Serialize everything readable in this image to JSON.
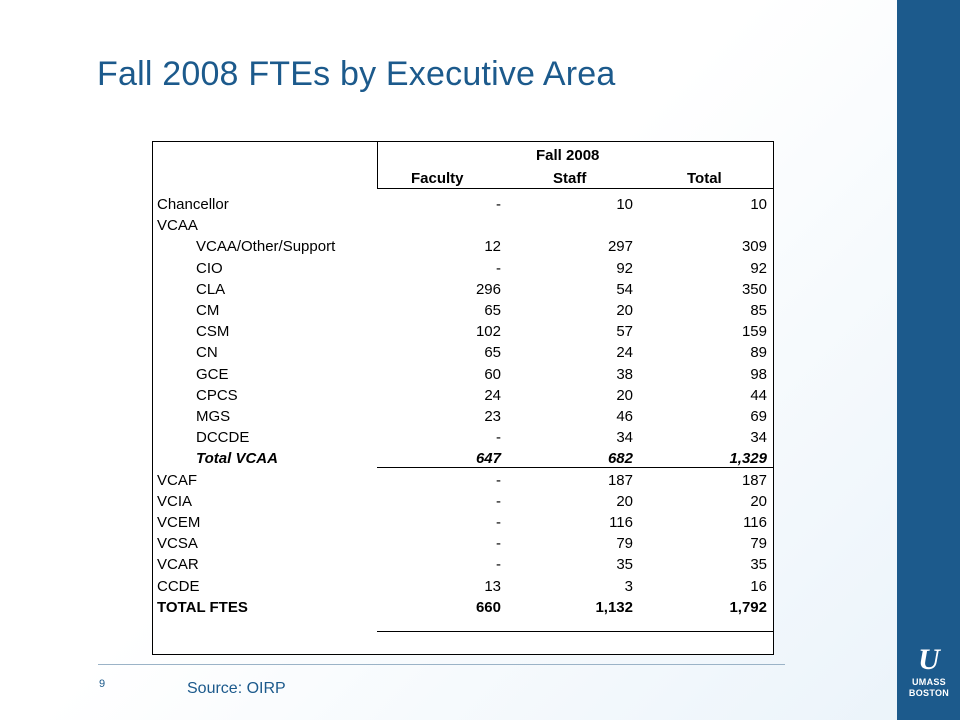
{
  "title": "Fall 2008 FTEs by Executive Area",
  "table": {
    "group_header": "Fall 2008",
    "columns": [
      "Faculty",
      "Staff",
      "Total"
    ],
    "rows": [
      {
        "label": "Chancellor",
        "faculty": "-",
        "staff": "10",
        "total": "10",
        "indent": false,
        "style": "normal"
      },
      {
        "label": "VCAA",
        "faculty": "",
        "staff": "",
        "total": "",
        "indent": false,
        "style": "normal"
      },
      {
        "label": "VCAA/Other/Support",
        "faculty": "12",
        "staff": "297",
        "total": "309",
        "indent": true,
        "style": "normal"
      },
      {
        "label": "CIO",
        "faculty": "-",
        "staff": "92",
        "total": "92",
        "indent": true,
        "style": "normal"
      },
      {
        "label": "CLA",
        "faculty": "296",
        "staff": "54",
        "total": "350",
        "indent": true,
        "style": "normal"
      },
      {
        "label": "CM",
        "faculty": "65",
        "staff": "20",
        "total": "85",
        "indent": true,
        "style": "normal"
      },
      {
        "label": "CSM",
        "faculty": "102",
        "staff": "57",
        "total": "159",
        "indent": true,
        "style": "normal"
      },
      {
        "label": "CN",
        "faculty": "65",
        "staff": "24",
        "total": "89",
        "indent": true,
        "style": "normal"
      },
      {
        "label": "GCE",
        "faculty": "60",
        "staff": "38",
        "total": "98",
        "indent": true,
        "style": "normal"
      },
      {
        "label": "CPCS",
        "faculty": "24",
        "staff": "20",
        "total": "44",
        "indent": true,
        "style": "normal"
      },
      {
        "label": "MGS",
        "faculty": "23",
        "staff": "46",
        "total": "69",
        "indent": true,
        "style": "normal"
      },
      {
        "label": "DCCDE",
        "faculty": "-",
        "staff": "34",
        "total": "34",
        "indent": true,
        "style": "normal"
      },
      {
        "label": "Total VCAA",
        "faculty": "647",
        "staff": "682",
        "total": "1,329",
        "indent": true,
        "style": "italic"
      },
      {
        "label": "VCAF",
        "faculty": "-",
        "staff": "187",
        "total": "187",
        "indent": false,
        "style": "normal"
      },
      {
        "label": "VCIA",
        "faculty": "-",
        "staff": "20",
        "total": "20",
        "indent": false,
        "style": "normal"
      },
      {
        "label": "VCEM",
        "faculty": "-",
        "staff": "116",
        "total": "116",
        "indent": false,
        "style": "normal"
      },
      {
        "label": "VCSA",
        "faculty": "-",
        "staff": "79",
        "total": "79",
        "indent": false,
        "style": "normal"
      },
      {
        "label": "VCAR",
        "faculty": "-",
        "staff": "35",
        "total": "35",
        "indent": false,
        "style": "normal"
      },
      {
        "label": "CCDE",
        "faculty": "13",
        "staff": "3",
        "total": "16",
        "indent": false,
        "style": "normal"
      },
      {
        "label": "TOTAL FTES",
        "faculty": "660",
        "staff": "1,132",
        "total": "1,792",
        "indent": false,
        "style": "bold"
      }
    ]
  },
  "footer": {
    "page_number": "9",
    "source": "Source:  OIRP"
  },
  "logo": {
    "line1": "UMASS",
    "line2": "BOSTON"
  },
  "colors": {
    "accent": "#1c5a8c",
    "sidebar": "#1c5a8c"
  }
}
